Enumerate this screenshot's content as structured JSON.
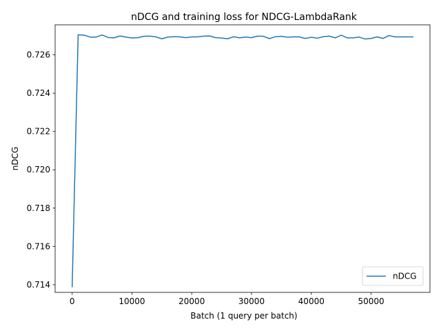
{
  "chart_data": {
    "type": "line",
    "title": "nDCG and training loss for NDCG-LambdaRank",
    "xlabel": "Batch (1 query per batch)",
    "ylabel": "nDCG",
    "xlim": [
      -2850,
      59850
    ],
    "ylim": [
      0.7136,
      0.72757
    ],
    "x_ticks": [
      0,
      10000,
      20000,
      30000,
      40000,
      50000
    ],
    "x_tick_labels": [
      "0",
      "10000",
      "20000",
      "30000",
      "40000",
      "50000"
    ],
    "y_ticks": [
      0.714,
      0.716,
      0.718,
      0.72,
      0.722,
      0.724,
      0.726
    ],
    "y_tick_labels": [
      "0.714",
      "0.716",
      "0.718",
      "0.720",
      "0.722",
      "0.724",
      "0.726"
    ],
    "grid": false,
    "legend": {
      "position": "lower-right",
      "entries": [
        "nDCG"
      ]
    },
    "series": [
      {
        "name": "nDCG",
        "color": "#1f77b4",
        "x": [
          0,
          1000,
          2000,
          3000,
          4000,
          5000,
          6000,
          7000,
          8000,
          9000,
          10000,
          11000,
          12000,
          13000,
          14000,
          15000,
          16000,
          17000,
          18000,
          19000,
          20000,
          21000,
          22000,
          23000,
          24000,
          25000,
          26000,
          27000,
          28000,
          29000,
          30000,
          31000,
          32000,
          33000,
          34000,
          35000,
          36000,
          37000,
          38000,
          39000,
          40000,
          41000,
          42000,
          43000,
          44000,
          45000,
          46000,
          47000,
          48000,
          49000,
          50000,
          51000,
          52000,
          53000,
          54000,
          55000,
          56000,
          57000
        ],
        "values": [
          0.7139,
          0.72705,
          0.72703,
          0.72693,
          0.72693,
          0.72704,
          0.72691,
          0.72689,
          0.72699,
          0.72693,
          0.72688,
          0.7269,
          0.72697,
          0.72698,
          0.72694,
          0.72684,
          0.72693,
          0.72695,
          0.72694,
          0.7269,
          0.72694,
          0.72694,
          0.72698,
          0.72699,
          0.7269,
          0.72688,
          0.72684,
          0.72695,
          0.72689,
          0.72693,
          0.7269,
          0.72698,
          0.72697,
          0.72685,
          0.72695,
          0.72697,
          0.72692,
          0.72694,
          0.72694,
          0.72686,
          0.72692,
          0.72687,
          0.72695,
          0.72698,
          0.72689,
          0.72703,
          0.72689,
          0.72689,
          0.72693,
          0.72683,
          0.72686,
          0.72694,
          0.72686,
          0.72701,
          0.72694,
          0.72694,
          0.72694,
          0.72694
        ]
      }
    ]
  }
}
